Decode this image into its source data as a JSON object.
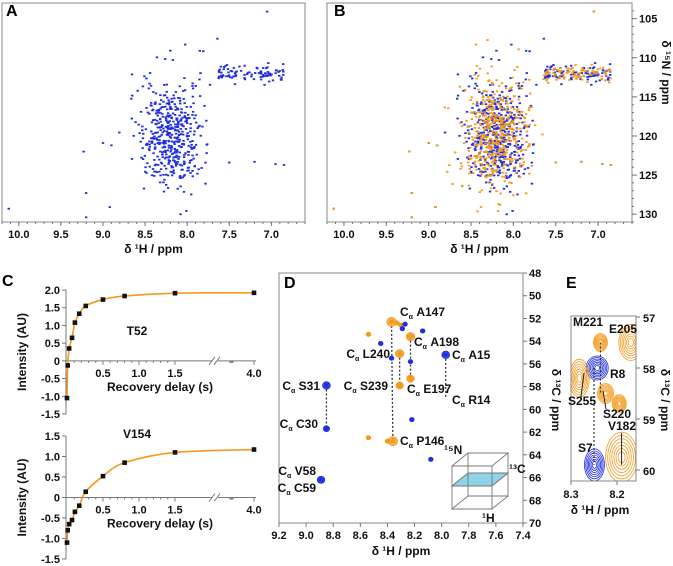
{
  "colors": {
    "blue": "#1f2fe0",
    "orange": "#f39a1e",
    "fit": "#f39a1e",
    "marker": "#111111",
    "cube_plane": "#8fd3e6"
  },
  "panels": {
    "A": "A",
    "B": "B",
    "C": "C",
    "D": "D",
    "E": "E"
  },
  "chart_data": [
    {
      "panel": "A",
      "type": "scatter",
      "xlabel": "δ ¹H / ppm",
      "ylabel": "",
      "xlim": [
        10.2,
        6.6
      ],
      "ylim": [
        103,
        131
      ],
      "xticks": [
        "10.0",
        "9.5",
        "9.0",
        "8.5",
        "8.0",
        "7.5",
        "7.0"
      ],
      "series": [
        {
          "color": "blue"
        }
      ]
    },
    {
      "panel": "B",
      "type": "scatter",
      "xlabel": "δ ¹H / ppm",
      "ylabel": "δ ¹⁵N / ppm",
      "xlim": [
        10.2,
        6.6
      ],
      "ylim": [
        103,
        131
      ],
      "xticks": [
        "10.0",
        "9.5",
        "9.0",
        "8.5",
        "8.0",
        "7.5",
        "7.0"
      ],
      "yticks": [
        "105",
        "110",
        "115",
        "120",
        "125",
        "130"
      ],
      "series": [
        {
          "color": "blue"
        },
        {
          "color": "orange"
        }
      ]
    },
    {
      "panel": "C-top",
      "type": "line",
      "annotation": "T52",
      "xlabel": "Recovery delay (s)",
      "ylabel": "Intensity (AU)",
      "ylim": [
        -1.5,
        2.0
      ],
      "axis_break": [
        1.5,
        4.0
      ],
      "xticks": [
        "0.5",
        "1.0",
        "1.5",
        "4.0"
      ],
      "yticks": [
        "2.0",
        "1.5",
        "1.0",
        "0.5",
        "0",
        "-0.5",
        "-1.0",
        "-1.5"
      ],
      "x": [
        0.0,
        0.01,
        0.03,
        0.07,
        0.11,
        0.17,
        0.26,
        0.5,
        0.8,
        1.5,
        4.0
      ],
      "y": [
        -1.05,
        -0.13,
        0.35,
        0.65,
        1.08,
        1.33,
        1.55,
        1.73,
        1.83,
        1.91,
        1.92
      ]
    },
    {
      "panel": "C-bottom",
      "type": "line",
      "annotation": "V154",
      "xlabel": "Recovery delay (s)",
      "ylabel": "Intensity (AU)",
      "ylim": [
        -1.5,
        1.5
      ],
      "axis_break": [
        1.5,
        4.0
      ],
      "xticks": [
        "0.5",
        "1.0",
        "1.5",
        "4.0"
      ],
      "yticks": [
        "1.5",
        "1.0",
        "0.5",
        "0",
        "-0.5",
        "-1.0",
        "-1.5"
      ],
      "x": [
        0.0,
        0.01,
        0.03,
        0.07,
        0.11,
        0.17,
        0.26,
        0.5,
        0.8,
        1.5,
        4.0
      ],
      "y": [
        -1.1,
        -0.8,
        -0.65,
        -0.55,
        -0.35,
        -0.2,
        0.14,
        0.52,
        0.85,
        1.1,
        1.17
      ]
    },
    {
      "panel": "D",
      "type": "scatter",
      "xlabel": "δ ¹H / ppm",
      "ylabel": "δ ¹³C / ppm",
      "xlim": [
        9.2,
        7.4
      ],
      "ylim": [
        48,
        70
      ],
      "xticks": [
        "9.2",
        "9.0",
        "8.8",
        "8.6",
        "8.4",
        "8.2",
        "8.0",
        "7.8",
        "7.6",
        "7.4"
      ],
      "yticks": [
        "48",
        "50",
        "52",
        "54",
        "56",
        "58",
        "60",
        "62",
        "64",
        "66",
        "68",
        "70"
      ],
      "peaks": [
        {
          "label": "A147",
          "atom": "Cα",
          "h": 8.37,
          "c": 52.3,
          "color": "orange",
          "size": 3
        },
        {
          "label": "A198",
          "atom": "Cα",
          "h": 8.23,
          "c": 53.6,
          "color": "orange",
          "size": 2.5
        },
        {
          "label": "L240",
          "atom": "Cα",
          "h": 8.31,
          "c": 55.1,
          "color": "orange",
          "size": 2.5
        },
        {
          "label": "A15",
          "atom": "Cα",
          "h": 7.97,
          "c": 55.2,
          "color": "blue",
          "size": 2.2
        },
        {
          "label": "S239",
          "atom": "Cα",
          "h": 8.31,
          "c": 57.9,
          "color": "orange",
          "size": 2
        },
        {
          "label": "E197",
          "atom": "Cα",
          "h": 8.23,
          "c": 57.3,
          "color": "orange",
          "size": 2
        },
        {
          "label": "R14",
          "atom": "Cα",
          "h": 7.97,
          "c": 59.0,
          "color": "blue",
          "size": 0
        },
        {
          "label": "P146",
          "atom": "Cα",
          "h": 8.36,
          "c": 62.8,
          "color": "orange",
          "size": 3
        },
        {
          "label": "S31",
          "atom": "Cα",
          "h": 8.85,
          "c": 57.9,
          "color": "blue",
          "size": 2.2
        },
        {
          "label": "C30",
          "atom": "Cα",
          "h": 8.85,
          "c": 61.7,
          "color": "blue",
          "size": 1.4
        },
        {
          "label": "V58",
          "atom": "Cα",
          "h": 8.89,
          "c": 66.2,
          "color": "blue",
          "size": 2
        },
        {
          "label": "C59",
          "atom": "Cα",
          "h": 8.89,
          "c": 66.2,
          "color": "blue",
          "size": 0
        }
      ],
      "unlabeled_peaks": [
        {
          "h": 8.54,
          "c": 53.4,
          "color": "orange"
        },
        {
          "h": 8.33,
          "c": 52.4,
          "color": "orange"
        },
        {
          "h": 8.3,
          "c": 52.6,
          "color": "orange"
        },
        {
          "h": 8.27,
          "c": 52.5,
          "color": "blue"
        },
        {
          "h": 8.29,
          "c": 52.9,
          "color": "blue"
        },
        {
          "h": 8.14,
          "c": 53.1,
          "color": "blue"
        },
        {
          "h": 8.08,
          "c": 64.4,
          "color": "blue"
        },
        {
          "h": 8.22,
          "c": 60.9,
          "color": "blue"
        },
        {
          "h": 8.54,
          "c": 62.5,
          "color": "orange"
        },
        {
          "h": 8.4,
          "c": 62.8,
          "color": "orange"
        },
        {
          "h": 8.37,
          "c": 55.5,
          "color": "blue"
        },
        {
          "h": 8.45,
          "c": 54.2,
          "color": "blue"
        },
        {
          "h": 8.23,
          "c": 55.8,
          "color": "blue"
        }
      ],
      "dashed_links": [
        [
          "A147",
          "P146"
        ],
        [
          "L240",
          "S239"
        ],
        [
          "A198",
          "E197"
        ],
        [
          "A15",
          "R14"
        ],
        [
          "S31",
          "C30"
        ]
      ],
      "inset_axes": {
        "n": "¹⁵N",
        "c": "¹³C",
        "h": "¹H"
      }
    },
    {
      "panel": "E",
      "type": "scatter",
      "xlabel": "δ ¹H / ppm",
      "ylabel": "δ ¹³C / ppm",
      "xlim": [
        8.3,
        8.16
      ],
      "ylim": [
        57,
        60.2
      ],
      "xticks": [
        "8.3",
        "8.2"
      ],
      "yticks": [
        "57",
        "58",
        "59",
        "60"
      ],
      "peaks": [
        {
          "label": "E205",
          "h": 8.17,
          "c": 57.5,
          "color": "orange"
        },
        {
          "label": "",
          "h": 8.236,
          "c": 57.5,
          "color": "orange"
        },
        {
          "label": "R8",
          "h": 8.243,
          "c": 58.0,
          "color": "blue"
        },
        {
          "label": "S255",
          "h": 8.282,
          "c": 58.2,
          "color": "orange"
        },
        {
          "label": "S220",
          "h": 8.225,
          "c": 58.5,
          "color": "orange"
        },
        {
          "label": "",
          "h": 8.195,
          "c": 58.7,
          "color": "orange"
        },
        {
          "label": "S7",
          "h": 8.249,
          "c": 59.9,
          "color": "blue"
        },
        {
          "label": "V182",
          "h": 8.19,
          "c": 59.75,
          "color": "orange"
        }
      ],
      "corner_label": "M221"
    }
  ]
}
